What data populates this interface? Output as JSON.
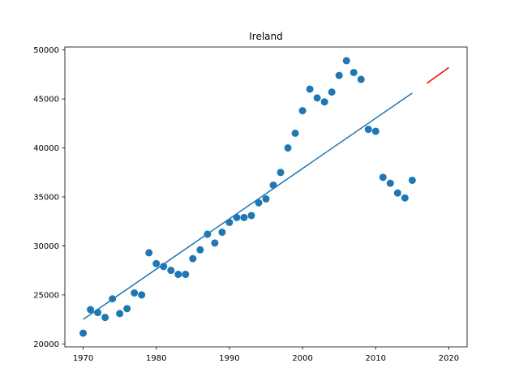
{
  "chart_data": {
    "type": "scatter",
    "title": "Ireland",
    "xlabel": "",
    "ylabel": "",
    "xlim": [
      1967.5,
      2022.5
    ],
    "ylim": [
      19700,
      50300
    ],
    "x_ticks": [
      1970,
      1980,
      1990,
      2000,
      2010,
      2020
    ],
    "y_ticks": [
      20000,
      25000,
      30000,
      35000,
      40000,
      45000,
      50000
    ],
    "grid": false,
    "legend": "none",
    "colors": {
      "scatter": "#1f77b4",
      "fit": "#1f77b4",
      "forecast": "#ff0000"
    },
    "series": [
      {
        "kind": "scatter",
        "x": [
          1970,
          1971,
          1972,
          1973,
          1974,
          1975,
          1976,
          1977,
          1978,
          1979,
          1980,
          1981,
          1982,
          1983,
          1984,
          1985,
          1986,
          1987,
          1988,
          1989,
          1990,
          1991,
          1992,
          1993,
          1994,
          1995,
          1996,
          1997,
          1998,
          1999,
          2000,
          2001,
          2002,
          2003,
          2004,
          2005,
          2006,
          2007,
          2008,
          2009,
          2010,
          2011,
          2012,
          2013,
          2014,
          2015
        ],
        "y": [
          21100,
          23500,
          23200,
          22700,
          24600,
          23100,
          23600,
          25200,
          25000,
          29300,
          28200,
          27900,
          27500,
          27100,
          27100,
          28700,
          29600,
          31200,
          30300,
          31400,
          32400,
          32900,
          32900,
          33100,
          34400,
          34800,
          36200,
          37500,
          40000,
          41500,
          43800,
          46000,
          45100,
          44700,
          45700,
          47400,
          48900,
          47700,
          47000,
          41900,
          41700,
          37000,
          36400,
          35400,
          34900,
          36700
        ]
      },
      {
        "kind": "line",
        "x": [
          1970,
          2015
        ],
        "y": [
          22500,
          45600
        ]
      },
      {
        "kind": "line",
        "x": [
          2017,
          2020
        ],
        "y": [
          46600,
          48200
        ]
      }
    ]
  }
}
